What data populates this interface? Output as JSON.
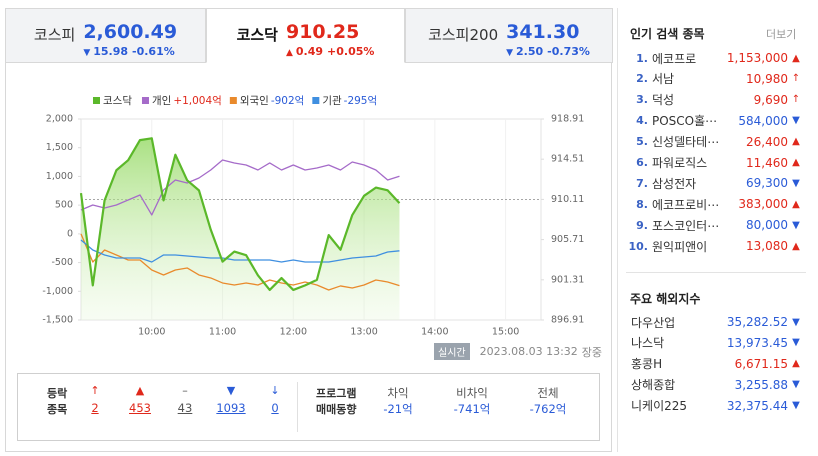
{
  "tabs": [
    {
      "name": "코스피",
      "value": "2,600.49",
      "arrow": "▼",
      "change": "15.98",
      "rate": "-0.61%",
      "dir": "down",
      "active": false
    },
    {
      "name": "코스닥",
      "value": "910.25",
      "arrow": "▲",
      "change": "0.49",
      "rate": "+0.05%",
      "dir": "up",
      "active": true
    },
    {
      "name": "코스피200",
      "value": "341.30",
      "arrow": "▼",
      "change": "2.50",
      "rate": "-0.73%",
      "dir": "down",
      "active": false
    }
  ],
  "chart_data": {
    "type": "line",
    "x": [
      "09:00",
      "09:10",
      "09:20",
      "09:30",
      "09:40",
      "09:50",
      "10:00",
      "10:10",
      "10:20",
      "10:30",
      "10:40",
      "10:50",
      "11:00",
      "11:10",
      "11:20",
      "11:30",
      "11:40",
      "11:50",
      "12:00",
      "12:10",
      "12:20",
      "12:30",
      "12:40",
      "12:50",
      "13:00",
      "13:10",
      "13:20",
      "13:30"
    ],
    "xlim": [
      "09:00",
      "15:30"
    ],
    "xticks": [
      "10:00",
      "11:00",
      "12:00",
      "13:00",
      "14:00",
      "15:00"
    ],
    "ylim": [
      -1500,
      2000
    ],
    "yticks": [
      {
        "value": 2000,
        "label": "2,000"
      },
      {
        "value": 1500,
        "label": "1,500"
      },
      {
        "value": 1000,
        "label": "1,000"
      },
      500,
      0,
      -500,
      {
        "value": -1000,
        "label": "-1,000"
      },
      {
        "value": -1500,
        "label": "-1,500"
      }
    ],
    "y2lim": [
      896.91,
      918.91
    ],
    "y2ticks": [
      918.91,
      914.51,
      910.11,
      905.71,
      901.31,
      896.91
    ],
    "baseline": 910.11,
    "series": [
      {
        "name": "코스닥",
        "color": "#5bb82a",
        "axis": "y2",
        "area": true,
        "values": [
          910.8,
          900.7,
          910.0,
          913.3,
          914.4,
          916.6,
          916.8,
          910.0,
          915.0,
          912.2,
          911.1,
          906.8,
          903.3,
          904.4,
          904.0,
          901.8,
          900.2,
          901.5,
          900.2,
          900.7,
          901.3,
          906.2,
          904.6,
          908.4,
          910.5,
          911.4,
          911.1,
          909.7
        ]
      },
      {
        "name": "개인",
        "color": "#a56bc9",
        "label": "+1,004억",
        "label_color": "#e0281b",
        "values": [
          416,
          503,
          451,
          503,
          590,
          677,
          329,
          764,
          938,
          886,
          973,
          1112,
          1286,
          1234,
          1199,
          1112,
          1234,
          1112,
          1199,
          1112,
          1147,
          1199,
          1112,
          1251,
          1199,
          1112,
          938,
          1004
        ]
      },
      {
        "name": "외국인",
        "color": "#e98a2c",
        "label": "-902억",
        "label_color": "#2a5bd7",
        "values": [
          0,
          -490,
          -281,
          -368,
          -455,
          -455,
          -629,
          -716,
          -629,
          -594,
          -716,
          -768,
          -855,
          -890,
          -855,
          -890,
          -803,
          -855,
          -890,
          -838,
          -890,
          -977,
          -907,
          -942,
          -890,
          -803,
          -838,
          -902
        ]
      },
      {
        "name": "기관",
        "color": "#3f8fe0",
        "label": "-295억",
        "label_color": "#2a5bd7",
        "values": [
          -107,
          -281,
          -368,
          -420,
          -420,
          -420,
          -490,
          -368,
          -368,
          -385,
          -403,
          -420,
          -420,
          -455,
          -455,
          -455,
          -455,
          -490,
          -455,
          -490,
          -490,
          -490,
          -455,
          -420,
          -403,
          -385,
          -316,
          -295
        ]
      }
    ]
  },
  "chart_footer": {
    "badge": "실시간",
    "timestamp": "2023.08.03 13:32",
    "status": "장중"
  },
  "updown": {
    "title": [
      "등락",
      "종목"
    ],
    "items": [
      {
        "arrow": "↑",
        "count": 2,
        "dir": "up"
      },
      {
        "arrow": "▲",
        "count": 453,
        "dir": "up"
      },
      {
        "arrow": "–",
        "count": 43,
        "dir": "flat"
      },
      {
        "arrow": "▼",
        "count": 1093,
        "dir": "down"
      },
      {
        "arrow": "↓",
        "count": 0,
        "dir": "down"
      }
    ]
  },
  "program": {
    "title": [
      "프로그램",
      "매매동향"
    ],
    "items": [
      {
        "label": "차익",
        "value": "-21억"
      },
      {
        "label": "비차익",
        "value": "-741억"
      },
      {
        "label": "전체",
        "value": "-762억"
      }
    ]
  },
  "popular": {
    "title": "인기 검색 종목",
    "more": "더보기",
    "items": [
      {
        "rank": "1.",
        "name": "에코프로",
        "price": "1,153,000",
        "arrow": "▲",
        "dir": "up"
      },
      {
        "rank": "2.",
        "name": "서남",
        "price": "10,980",
        "arrow": "↑",
        "dir": "up"
      },
      {
        "rank": "3.",
        "name": "덕성",
        "price": "9,690",
        "arrow": "↑",
        "dir": "up"
      },
      {
        "rank": "4.",
        "name": "POSCO홀⋯",
        "price": "584,000",
        "arrow": "▼",
        "dir": "down"
      },
      {
        "rank": "5.",
        "name": "신성델타테⋯",
        "price": "26,400",
        "arrow": "▲",
        "dir": "up"
      },
      {
        "rank": "6.",
        "name": "파워로직스",
        "price": "11,460",
        "arrow": "▲",
        "dir": "up"
      },
      {
        "rank": "7.",
        "name": "삼성전자",
        "price": "69,300",
        "arrow": "▼",
        "dir": "down"
      },
      {
        "rank": "8.",
        "name": "에코프로비⋯",
        "price": "383,000",
        "arrow": "▲",
        "dir": "up"
      },
      {
        "rank": "9.",
        "name": "포스코인터⋯",
        "price": "80,000",
        "arrow": "▼",
        "dir": "down"
      },
      {
        "rank": "10.",
        "name": "원익피앤이",
        "price": "13,080",
        "arrow": "▲",
        "dir": "up"
      }
    ]
  },
  "overseas": {
    "title": "주요 해외지수",
    "items": [
      {
        "name": "다우산업",
        "value": "35,282.52",
        "arrow": "▼",
        "dir": "down"
      },
      {
        "name": "나스닥",
        "value": "13,973.45",
        "arrow": "▼",
        "dir": "down"
      },
      {
        "name": "홍콩H",
        "value": "6,671.15",
        "arrow": "▲",
        "dir": "up"
      },
      {
        "name": "상해종합",
        "value": "3,255.88",
        "arrow": "▼",
        "dir": "down"
      },
      {
        "name": "니케이225",
        "value": "32,375.44",
        "arrow": "▼",
        "dir": "down"
      }
    ]
  }
}
